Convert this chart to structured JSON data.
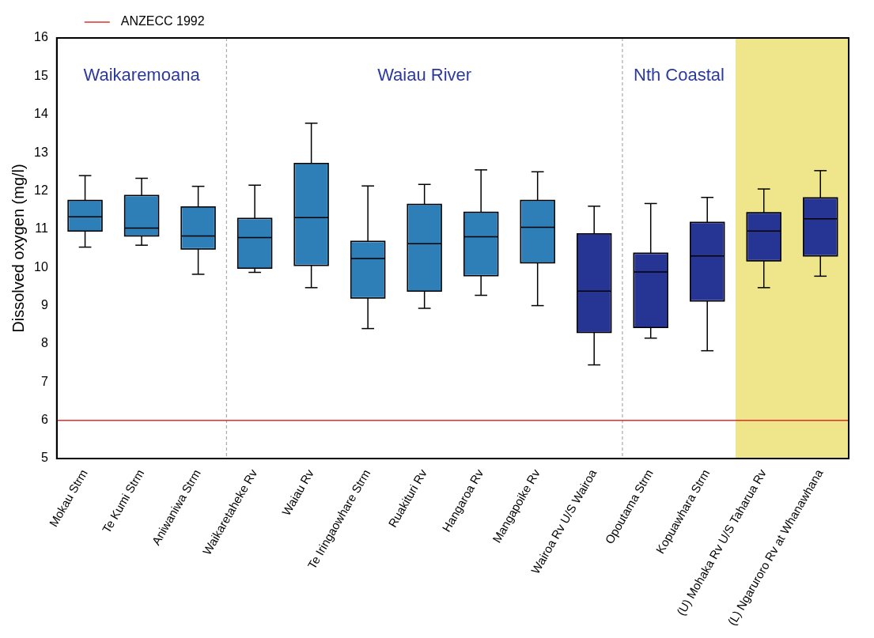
{
  "chart_data": {
    "type": "box",
    "ylabel": "Dissolved oxygen (mg/l)",
    "categories": [
      "Mokau Strm",
      "Te Kumi Strm",
      "Aniwaniwa Strm",
      "Waikaretaheke Rv",
      "Waiau Rv",
      "Te Iringaowhare Strm",
      "Ruakituri Rv",
      "Hangaroa Rv",
      "Mangapoike Rv",
      "Wairoa Rv U/S Wairoa",
      "Opoutama Strm",
      "Kopuawhara Strm",
      "(U) Mohaka Rv U/S Taharua Rv",
      "(L) Ngaruroro Rv at Whanawhana"
    ],
    "boxes": [
      {
        "low": 10.53,
        "q1": 10.95,
        "median": 11.32,
        "q3": 11.75,
        "high": 12.4
      },
      {
        "low": 10.58,
        "q1": 10.82,
        "median": 11.03,
        "q3": 11.88,
        "high": 12.33
      },
      {
        "low": 9.82,
        "q1": 10.48,
        "median": 10.82,
        "q3": 11.58,
        "high": 12.12
      },
      {
        "low": 9.87,
        "q1": 9.98,
        "median": 10.78,
        "q3": 11.28,
        "high": 12.15
      },
      {
        "low": 9.47,
        "q1": 10.05,
        "median": 11.3,
        "q3": 12.72,
        "high": 13.77
      },
      {
        "low": 8.4,
        "q1": 9.2,
        "median": 10.23,
        "q3": 10.68,
        "high": 12.13
      },
      {
        "low": 8.93,
        "q1": 9.38,
        "median": 10.62,
        "q3": 11.65,
        "high": 12.17
      },
      {
        "low": 9.27,
        "q1": 9.78,
        "median": 10.8,
        "q3": 11.44,
        "high": 12.55
      },
      {
        "low": 9.0,
        "q1": 10.12,
        "median": 11.05,
        "q3": 11.75,
        "high": 12.5
      },
      {
        "low": 7.45,
        "q1": 8.3,
        "median": 9.38,
        "q3": 10.88,
        "high": 11.6
      },
      {
        "low": 8.15,
        "q1": 8.43,
        "median": 9.88,
        "q3": 10.37,
        "high": 11.67
      },
      {
        "low": 7.82,
        "q1": 9.12,
        "median": 10.3,
        "q3": 11.18,
        "high": 11.83
      },
      {
        "low": 9.47,
        "q1": 10.17,
        "median": 10.95,
        "q3": 11.43,
        "high": 12.05
      },
      {
        "low": 9.77,
        "q1": 10.3,
        "median": 11.27,
        "q3": 11.82,
        "high": 12.53
      }
    ],
    "colors": [
      "#2e7eb8",
      "#2e7eb8",
      "#2e7eb8",
      "#2e7eb8",
      "#2e7eb8",
      "#2e7eb8",
      "#2e7eb8",
      "#2e7eb8",
      "#2e7eb8",
      "#263594",
      "#263594",
      "#263594",
      "#263594",
      "#263594"
    ],
    "ylim": [
      5,
      16
    ],
    "yticks": [
      5,
      6,
      7,
      8,
      9,
      10,
      11,
      12,
      13,
      14,
      15,
      16
    ],
    "ref_lines": [
      {
        "axis": "y",
        "value": 6,
        "label": "ANZECC 1992",
        "color": "#e0302a"
      }
    ],
    "bands": [
      {
        "axis": "x",
        "from": "(U) Mohaka Rv U/S Taharua Rv",
        "to": "(L) Ngaruroro Rv at Whanawhana",
        "color": "#efe68c"
      }
    ],
    "annotations": [
      "Waikaremoana",
      "Waiau River",
      "Nth Coastal"
    ],
    "legend": "top left",
    "grid": false
  }
}
